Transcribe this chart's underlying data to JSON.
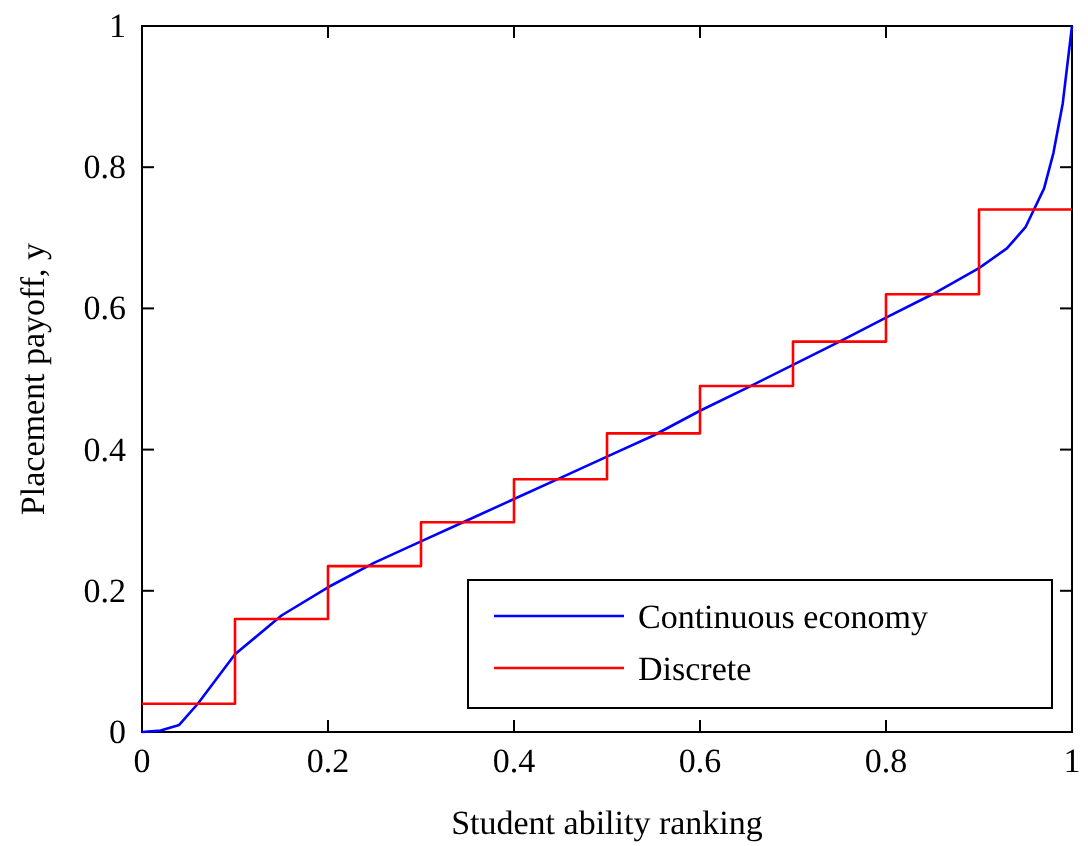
{
  "chart_data": {
    "type": "line",
    "xlabel": "Student ability ranking",
    "ylabel": "Placement payoff, y",
    "xlim": [
      0,
      1
    ],
    "ylim": [
      0,
      1
    ],
    "xticks": [
      0,
      0.2,
      0.4,
      0.6,
      0.8,
      1
    ],
    "yticks": [
      0,
      0.2,
      0.4,
      0.6,
      0.8,
      1
    ],
    "grid": false,
    "legend": "bottom right",
    "series": [
      {
        "name": "Continuous economy",
        "color": "#0000ff",
        "x": [
          0,
          0.02,
          0.04,
          0.06,
          0.08,
          0.1,
          0.15,
          0.2,
          0.25,
          0.3,
          0.35,
          0.4,
          0.45,
          0.5,
          0.55,
          0.6,
          0.65,
          0.7,
          0.75,
          0.8,
          0.85,
          0.9,
          0.93,
          0.95,
          0.97,
          0.98,
          0.99,
          1
        ],
        "values": [
          0,
          0.002,
          0.01,
          0.04,
          0.075,
          0.11,
          0.165,
          0.205,
          0.24,
          0.27,
          0.3,
          0.33,
          0.36,
          0.39,
          0.42,
          0.455,
          0.487,
          0.52,
          0.553,
          0.587,
          0.62,
          0.657,
          0.685,
          0.715,
          0.77,
          0.82,
          0.89,
          1
        ]
      },
      {
        "name": "Discrete",
        "color": "#ff0000",
        "type": "step",
        "x": [
          0,
          0.1,
          0.2,
          0.3,
          0.4,
          0.5,
          0.6,
          0.7,
          0.8,
          0.9,
          1
        ],
        "values": [
          0.04,
          0.16,
          0.235,
          0.297,
          0.358,
          0.423,
          0.49,
          0.553,
          0.62,
          0.74,
          0.74
        ]
      }
    ]
  }
}
